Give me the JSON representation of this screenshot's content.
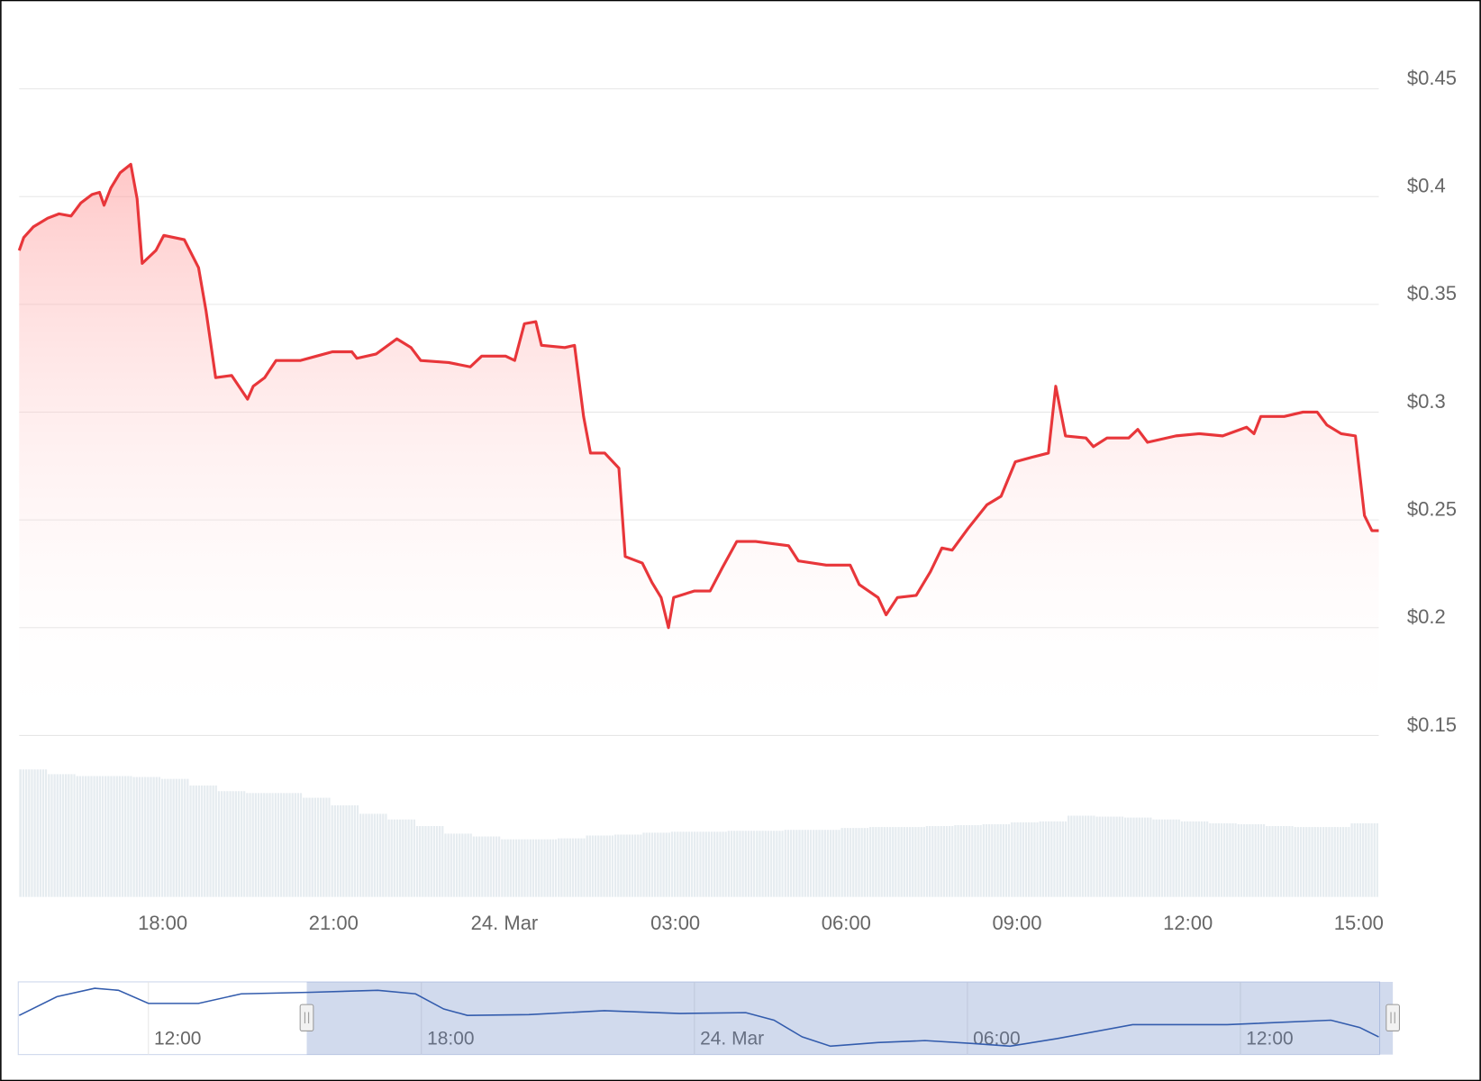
{
  "chart_data": {
    "type": "area",
    "color": "#e8363a",
    "x": [
      15.48,
      15.56,
      15.73,
      15.98,
      16.18,
      16.39,
      16.56,
      16.76,
      16.89,
      16.97,
      17.09,
      17.25,
      17.44,
      17.55,
      17.64,
      17.88,
      18.02,
      18.38,
      18.63,
      18.76,
      18.93,
      19.21,
      19.49,
      19.59,
      19.79,
      19.99,
      20.42,
      20.7,
      20.98,
      21.32,
      21.41,
      21.75,
      22.11,
      22.36,
      22.53,
      23.02,
      23.4,
      23.6,
      24.02,
      24.18,
      24.35,
      24.55,
      24.65,
      25.06,
      25.23,
      25.39,
      25.51,
      25.76,
      26.01,
      26.12,
      26.42,
      26.59,
      26.75,
      26.88,
      26.97,
      27.33,
      27.61,
      27.83,
      28.08,
      28.41,
      28.99,
      29.16,
      29.65,
      30.07,
      30.23,
      30.56,
      30.7,
      30.9,
      31.23,
      31.48,
      31.68,
      31.86,
      32.14,
      32.47,
      32.72,
      32.97,
      33.25,
      33.55,
      33.68,
      33.85,
      34.21,
      34.34,
      34.58,
      34.96,
      35.12,
      35.29,
      35.79,
      36.2,
      36.61,
      37.03,
      37.16,
      37.28,
      37.69,
      38.02,
      38.27,
      38.44,
      38.69,
      38.94,
      39.1,
      39.23,
      39.35
    ],
    "values": [
      0.375,
      0.381,
      0.386,
      0.39,
      0.392,
      0.391,
      0.397,
      0.401,
      0.402,
      0.396,
      0.404,
      0.411,
      0.415,
      0.399,
      0.369,
      0.375,
      0.382,
      0.38,
      0.367,
      0.347,
      0.316,
      0.317,
      0.306,
      0.312,
      0.316,
      0.324,
      0.324,
      0.326,
      0.328,
      0.328,
      0.325,
      0.327,
      0.334,
      0.33,
      0.324,
      0.323,
      0.321,
      0.326,
      0.326,
      0.324,
      0.341,
      0.342,
      0.331,
      0.33,
      0.331,
      0.298,
      0.281,
      0.281,
      0.274,
      0.233,
      0.23,
      0.221,
      0.214,
      0.2,
      0.214,
      0.217,
      0.217,
      0.228,
      0.24,
      0.24,
      0.238,
      0.231,
      0.229,
      0.229,
      0.22,
      0.214,
      0.206,
      0.214,
      0.215,
      0.226,
      0.237,
      0.236,
      0.246,
      0.257,
      0.261,
      0.277,
      0.279,
      0.281,
      0.312,
      0.289,
      0.288,
      0.284,
      0.288,
      0.288,
      0.292,
      0.286,
      0.289,
      0.29,
      0.289,
      0.293,
      0.29,
      0.298,
      0.298,
      0.3,
      0.3,
      0.294,
      0.29,
      0.289,
      0.252,
      0.245,
      0.245
    ],
    "xlim": [
      15.48,
      39.35
    ],
    "xticks": [
      {
        "value": 18,
        "label": "18:00"
      },
      {
        "value": 21,
        "label": "21:00"
      },
      {
        "value": 24,
        "label": "24. Mar"
      },
      {
        "value": 27,
        "label": "03:00"
      },
      {
        "value": 30,
        "label": "06:00"
      },
      {
        "value": 33,
        "label": "09:00"
      },
      {
        "value": 36,
        "label": "12:00"
      },
      {
        "value": 39,
        "label": "15:00"
      }
    ],
    "ylim": [
      0.15,
      0.48
    ],
    "yticks": [
      {
        "value": 0.15,
        "label": "$0.15"
      },
      {
        "value": 0.2,
        "label": "$0.2"
      },
      {
        "value": 0.25,
        "label": "$0.25"
      },
      {
        "value": 0.3,
        "label": "$0.3"
      },
      {
        "value": 0.35,
        "label": "$0.35"
      },
      {
        "value": 0.4,
        "label": "$0.4"
      },
      {
        "value": 0.45,
        "label": "$0.45"
      }
    ],
    "grid": true,
    "volume": {
      "color": "#e6ecf0",
      "ylim": [
        0,
        140
      ],
      "values": [
        135,
        130,
        128,
        128,
        127,
        125,
        118,
        112,
        110,
        110,
        105,
        97,
        88,
        82,
        75,
        67,
        64,
        61,
        61,
        62,
        65,
        66,
        68,
        69,
        69,
        70,
        70,
        71,
        71,
        73,
        74,
        74,
        75,
        76,
        77,
        79,
        80,
        86,
        85,
        84,
        82,
        80,
        78,
        77,
        75,
        74,
        74,
        78
      ]
    },
    "navigator": {
      "color": "#335cad",
      "x": [
        9.16,
        9.99,
        10.82,
        11.34,
        12,
        13.1,
        14.04,
        15.59,
        17.04,
        17.87,
        18.49,
        19.01,
        20.36,
        22.02,
        23.68,
        25.13,
        25.75,
        26.37,
        26.99,
        28.03,
        29.07,
        30.1,
        30.94,
        31.97,
        33.63,
        35.71,
        37.99,
        38.62,
        39.04
      ],
      "values": [
        0.33,
        0.397,
        0.427,
        0.42,
        0.373,
        0.373,
        0.407,
        0.413,
        0.42,
        0.407,
        0.353,
        0.33,
        0.333,
        0.347,
        0.337,
        0.34,
        0.313,
        0.253,
        0.22,
        0.233,
        0.24,
        0.23,
        0.22,
        0.247,
        0.297,
        0.297,
        0.313,
        0.287,
        0.253
      ],
      "xlim": [
        9.16,
        39.04
      ],
      "ylim": [
        0.19,
        0.45
      ],
      "xticks": [
        {
          "value": 12,
          "label": "12:00"
        },
        {
          "value": 18,
          "label": "18:00"
        },
        {
          "value": 24,
          "label": "24. Mar"
        },
        {
          "value": 30,
          "label": "06:00"
        },
        {
          "value": 36,
          "label": "12:00"
        }
      ]
    }
  }
}
